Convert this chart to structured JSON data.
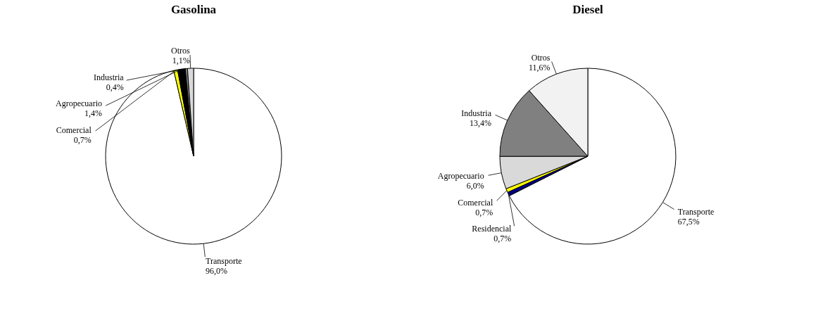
{
  "chart_data": [
    {
      "type": "pie",
      "title": "Gasolina",
      "categories": [
        "Transporte",
        "Comercial",
        "Agropecuario",
        "Industria",
        "Otros"
      ],
      "values": [
        96.0,
        0.7,
        1.4,
        0.4,
        1.1
      ],
      "colors": [
        "#ffffff",
        "#ffff00",
        "#000000",
        "#808080",
        "#d9d9d9"
      ],
      "value_labels": [
        "96,0%",
        "0,7%",
        "1,4%",
        "0,4%",
        "1,1%"
      ]
    },
    {
      "type": "pie",
      "title": "Diesel",
      "categories": [
        "Transporte",
        "Residencial",
        "Comercial",
        "Agropecuario",
        "Industria",
        "Otros"
      ],
      "values": [
        67.5,
        0.7,
        0.7,
        6.0,
        13.4,
        11.6
      ],
      "colors": [
        "#ffffff",
        "#000080",
        "#ffff00",
        "#d9d9d9",
        "#808080",
        "#f2f2f2"
      ],
      "value_labels": [
        "67,5%",
        "0,7%",
        "0,7%",
        "6,0%",
        "13,4%",
        "11,6%"
      ]
    }
  ]
}
